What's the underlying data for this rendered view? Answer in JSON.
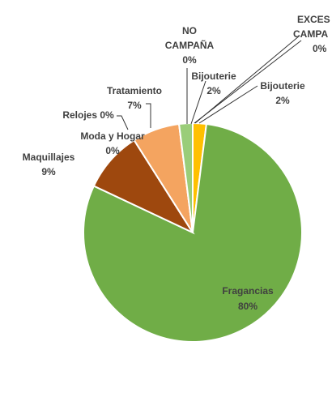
{
  "chart_data": {
    "type": "pie",
    "title": "",
    "slices": [
      {
        "name": "Fragancias",
        "value": 80,
        "label_value": "80%",
        "color": "#70AD47"
      },
      {
        "name": "Maquillajes",
        "value": 9,
        "label_value": "9%",
        "color": "#9E480E"
      },
      {
        "name": "Moda y Hogar",
        "value": 0,
        "label_value": "0%",
        "color": "#A5A5A5"
      },
      {
        "name": "Relojes",
        "value": 0,
        "label_value": "0%",
        "color": "#5B9BD5"
      },
      {
        "name": "Tratamiento",
        "value": 7,
        "label_value": "7%",
        "color": "#F4A460"
      },
      {
        "name": "NO CAMPAÑA",
        "value": 0,
        "label_value": "0%",
        "color": "#264478"
      },
      {
        "name": "Bijouterie",
        "value": 2,
        "label_value": "2%",
        "color": "#9ACD79"
      },
      {
        "name": "Bijouterie",
        "value": 2,
        "label_value": "2%",
        "color": "#FFC000"
      },
      {
        "name": "EXCES CAMPA",
        "value": 0,
        "label_value": "0%",
        "color": "#4472C4"
      }
    ],
    "labels": {
      "fragancias": {
        "name": "Fragancias",
        "value": "80%"
      },
      "maquillajes": {
        "name": "Maquillajes",
        "value": "9%"
      },
      "moda": {
        "name": "Moda y Hogar",
        "value": "0%"
      },
      "relojes": {
        "name": "Relojes 0%"
      },
      "tratamiento": {
        "name": "Tratamiento",
        "value": "7%"
      },
      "nocampana": {
        "line1": "NO",
        "line2": "CAMPAÑA",
        "value": "0%"
      },
      "bijouterie1": {
        "name": "Bijouterie",
        "value": "2%"
      },
      "bijouterie2": {
        "name": "Bijouterie",
        "value": "2%"
      },
      "exces": {
        "line1": "EXCES",
        "line2": "CAMPA",
        "value": "0%"
      }
    }
  }
}
